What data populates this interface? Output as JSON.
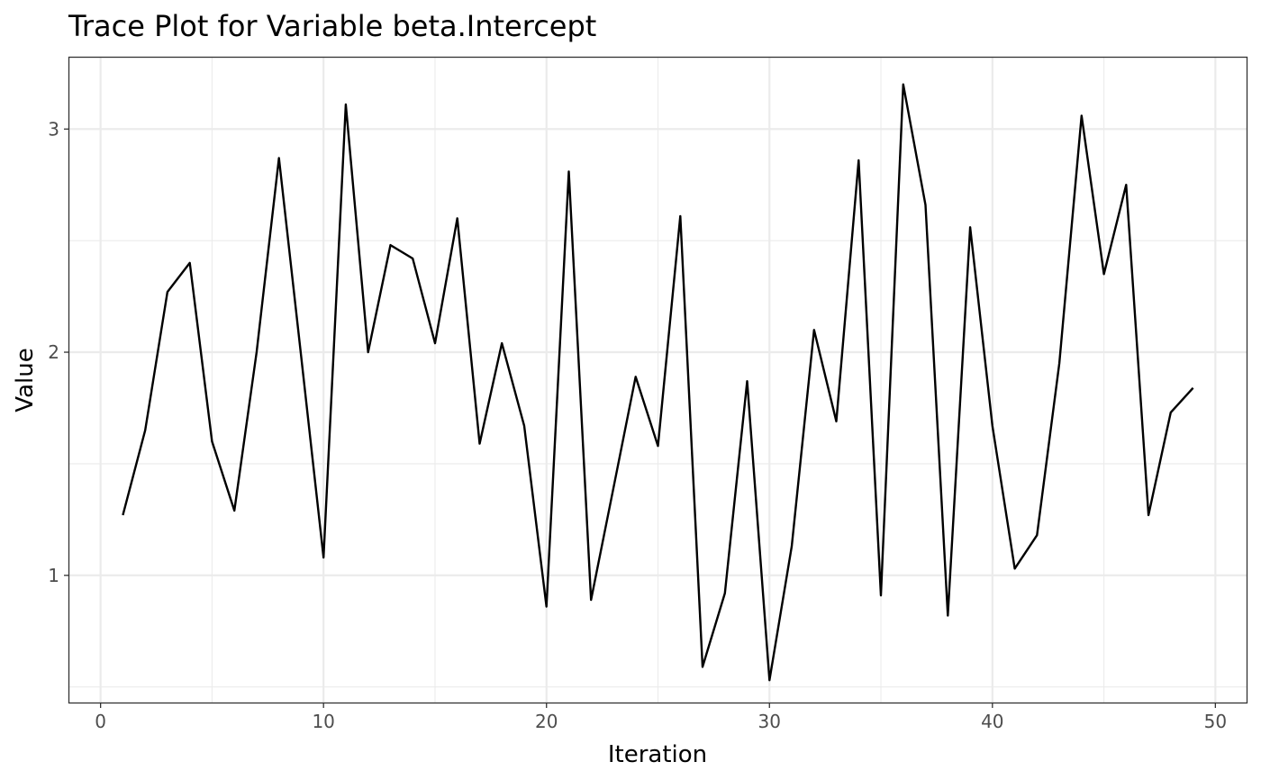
{
  "chart_data": {
    "type": "line",
    "title": "Trace Plot for Variable beta.Intercept",
    "xlabel": "Iteration",
    "ylabel": "Value",
    "xlim": [
      -1.4,
      51.4
    ],
    "ylim": [
      0.43,
      3.32
    ],
    "x_ticks": [
      0,
      10,
      20,
      30,
      40,
      50
    ],
    "y_ticks": [
      1,
      2,
      3
    ],
    "x_minor_ticks": [
      5,
      15,
      25,
      35,
      45
    ],
    "y_minor_ticks": [
      0.5,
      1.5,
      2.5
    ],
    "grid": true,
    "legend": "none",
    "line_color": "#000000",
    "x": [
      1,
      2,
      3,
      4,
      5,
      6,
      7,
      8,
      9,
      10,
      11,
      12,
      13,
      14,
      15,
      16,
      17,
      18,
      19,
      20,
      21,
      22,
      23,
      24,
      25,
      26,
      27,
      28,
      29,
      30,
      31,
      32,
      33,
      34,
      35,
      36,
      37,
      38,
      39,
      40,
      41,
      42,
      43,
      44,
      45,
      46,
      47,
      48,
      49
    ],
    "y": [
      1.27,
      1.65,
      2.27,
      2.4,
      1.6,
      1.29,
      2.0,
      2.87,
      1.98,
      1.08,
      3.11,
      2.0,
      2.48,
      2.42,
      2.04,
      2.6,
      1.59,
      2.04,
      1.67,
      0.86,
      2.81,
      0.89,
      1.39,
      1.89,
      1.58,
      2.61,
      0.59,
      0.92,
      1.87,
      0.53,
      1.13,
      2.1,
      1.69,
      2.86,
      0.91,
      3.2,
      2.66,
      0.82,
      2.56,
      1.67,
      1.03,
      1.18,
      1.95,
      3.06,
      2.35,
      2.75,
      1.27,
      1.73,
      1.84
    ]
  }
}
